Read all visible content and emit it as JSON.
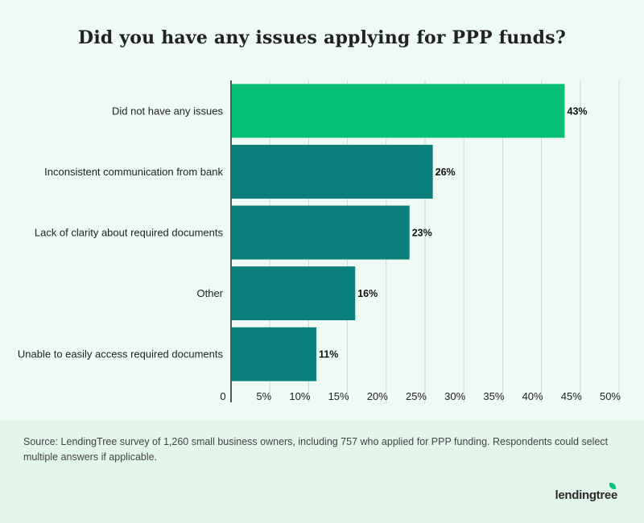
{
  "chart_data": {
    "type": "bar",
    "orientation": "horizontal",
    "title": "Did you have any issues applying for PPP funds?",
    "categories": [
      "Did not have any issues",
      "Inconsistent communication from bank",
      "Lack of clarity about required documents",
      "Other",
      "Unable to easily access required documents"
    ],
    "values": [
      43,
      26,
      23,
      16,
      11
    ],
    "value_labels": [
      "43%",
      "26%",
      "23%",
      "16%",
      "11%"
    ],
    "xlim": [
      0,
      50
    ],
    "x_ticks": [
      "0",
      "5%",
      "10%",
      "15%",
      "20%",
      "25%",
      "30%",
      "35%",
      "40%",
      "45%",
      "50%"
    ],
    "grid": "vertical",
    "colors": {
      "highlight": "#08c177",
      "default": "#0a7f7b",
      "grid": "#cfd8d4",
      "axis": "#222222"
    }
  },
  "source": "Source: LendingTree survey of 1,260 small business owners, including 757 who applied for PPP funding. Respondents could select multiple answers if applicable.",
  "brand": "lendingtree"
}
